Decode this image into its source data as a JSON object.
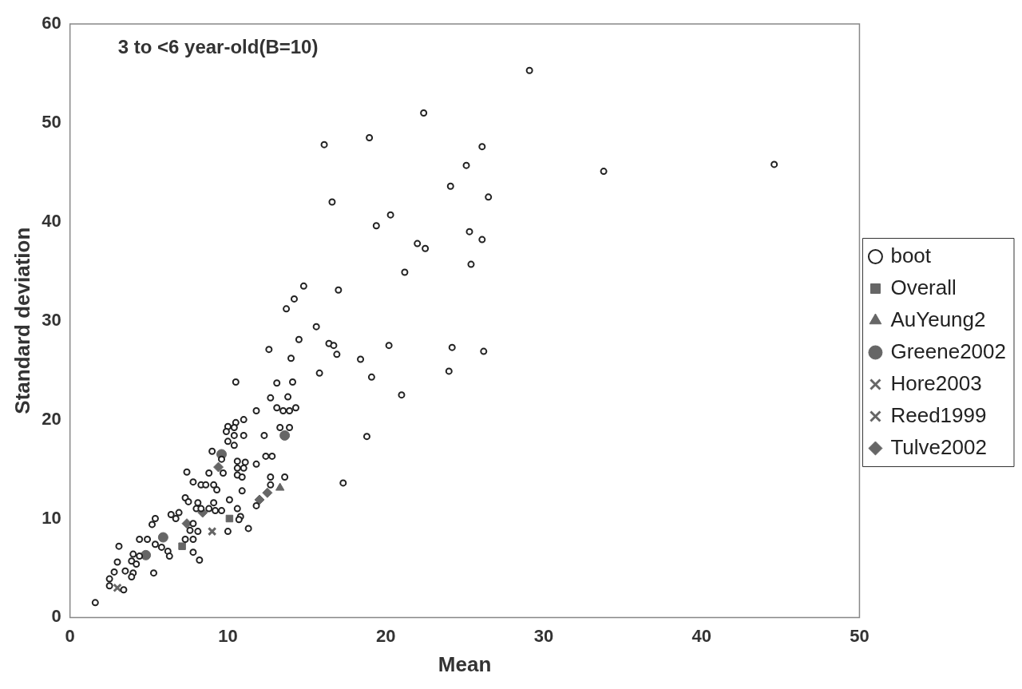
{
  "chart_data": {
    "type": "scatter",
    "title": "3 to <6 year-old(B=10)",
    "xlabel": "Mean",
    "ylabel": "Standard deviation",
    "xlim": [
      0,
      50
    ],
    "xticks": [
      0,
      10,
      20,
      30,
      40,
      50
    ],
    "ylim": [
      0,
      60
    ],
    "yticks": [
      0,
      10,
      20,
      30,
      40,
      50,
      60
    ],
    "grid": false,
    "legend": "right",
    "series": [
      {
        "name": "boot",
        "color": "#222222",
        "marker": "circle",
        "x": [
          29.1,
          22.4,
          18.96,
          16.1,
          26.1,
          25.1,
          33.8,
          24.1,
          26.5,
          16.6,
          20.3,
          19.4,
          25.3,
          26.1,
          22.0,
          22.5,
          25.4,
          21.2,
          14.8,
          17.0,
          14.2,
          13.7,
          15.6,
          14.5,
          16.4,
          16.7,
          16.9,
          20.2,
          24.2,
          26.2,
          14.0,
          18.4,
          24.0,
          15.8,
          19.1,
          44.6,
          21.0,
          18.8,
          17.3,
          12.6,
          10.5,
          13.1,
          14.1,
          12.7,
          13.8,
          13.1,
          13.5,
          13.9,
          14.3,
          11.8,
          10.5,
          11.0,
          10.0,
          10.4,
          9.9,
          10.4,
          11.0,
          10.0,
          10.4,
          12.3,
          13.3,
          13.9,
          9.0,
          12.4,
          12.8,
          11.8,
          10.6,
          11.1,
          10.6,
          11.0,
          10.6,
          10.9,
          9.6,
          9.7,
          9.3,
          8.8,
          7.4,
          7.8,
          8.3,
          8.6,
          9.1,
          10.9,
          12.7,
          13.6,
          12.7,
          11.8,
          7.3,
          7.5,
          8.1,
          8.0,
          8.3,
          8.8,
          9.1,
          9.2,
          9.6,
          10.1,
          10.6,
          10.8,
          10.7,
          10.0,
          11.3,
          6.9,
          6.4,
          6.7,
          5.4,
          5.2,
          4.4,
          4.9,
          7.8,
          7.6,
          8.1,
          7.3,
          7.8,
          5.4,
          5.8,
          6.2,
          6.3,
          7.8,
          8.2,
          3.1,
          4.0,
          4.4,
          3.9,
          4.2,
          3.0,
          3.5,
          4.0,
          3.9,
          5.3,
          2.8,
          2.5,
          2.5,
          3.4,
          1.6
        ],
        "values": [
          55.3,
          51.0,
          48.5,
          47.8,
          47.6,
          45.7,
          45.1,
          43.6,
          42.5,
          42.0,
          40.7,
          39.6,
          39.0,
          38.2,
          37.8,
          37.3,
          35.7,
          34.9,
          33.5,
          33.1,
          32.2,
          31.2,
          29.4,
          28.1,
          27.7,
          27.5,
          26.6,
          27.5,
          27.3,
          26.9,
          26.2,
          26.1,
          24.9,
          24.7,
          24.3,
          45.8,
          22.5,
          18.3,
          13.6,
          27.1,
          23.8,
          23.7,
          23.8,
          22.2,
          22.3,
          21.2,
          20.9,
          20.9,
          21.2,
          20.9,
          19.7,
          20.0,
          19.3,
          19.2,
          18.8,
          18.4,
          18.4,
          17.8,
          17.4,
          18.4,
          19.2,
          19.2,
          16.8,
          16.3,
          16.3,
          15.5,
          15.8,
          15.7,
          15.1,
          15.1,
          14.4,
          14.2,
          16.0,
          14.6,
          12.9,
          14.6,
          14.7,
          13.7,
          13.4,
          13.4,
          13.4,
          12.8,
          14.2,
          14.2,
          13.4,
          11.3,
          12.1,
          11.7,
          11.6,
          11.0,
          11.0,
          11.0,
          11.6,
          10.8,
          10.8,
          11.9,
          11.0,
          10.2,
          9.9,
          8.7,
          9.0,
          10.6,
          10.4,
          10.0,
          10.0,
          9.4,
          7.9,
          7.9,
          9.5,
          8.8,
          8.7,
          7.9,
          7.9,
          7.4,
          7.1,
          6.7,
          6.2,
          6.6,
          5.8,
          7.2,
          6.4,
          6.2,
          5.7,
          5.4,
          5.6,
          4.7,
          4.5,
          4.1,
          4.5,
          4.6,
          3.9,
          3.2,
          2.8,
          1.5
        ]
      },
      {
        "name": "Overall",
        "color": "#666666",
        "marker": "square",
        "x": [
          10.1,
          7.1
        ],
        "values": [
          10.0,
          7.2
        ]
      },
      {
        "name": "AuYeung2",
        "color": "#666666",
        "marker": "triangle",
        "x": [
          13.3
        ],
        "values": [
          13.1
        ]
      },
      {
        "name": "Greene2002",
        "color": "#666666",
        "marker": "circle",
        "x": [
          4.8,
          5.9,
          9.6,
          13.6
        ],
        "values": [
          6.3,
          8.1,
          16.5,
          18.4
        ]
      },
      {
        "name": "Hore2003",
        "color": "#666666",
        "marker": "cross",
        "x": [
          9.0
        ],
        "values": [
          8.7
        ]
      },
      {
        "name": "Reed1999",
        "color": "#666666",
        "marker": "cross",
        "x": [
          3.0
        ],
        "values": [
          3.0
        ]
      },
      {
        "name": "Tulve2002",
        "color": "#666666",
        "marker": "diamond",
        "x": [
          12.5,
          12.0,
          9.4,
          8.4,
          7.4
        ],
        "values": [
          12.6,
          11.9,
          15.2,
          10.6,
          9.5
        ]
      }
    ]
  }
}
